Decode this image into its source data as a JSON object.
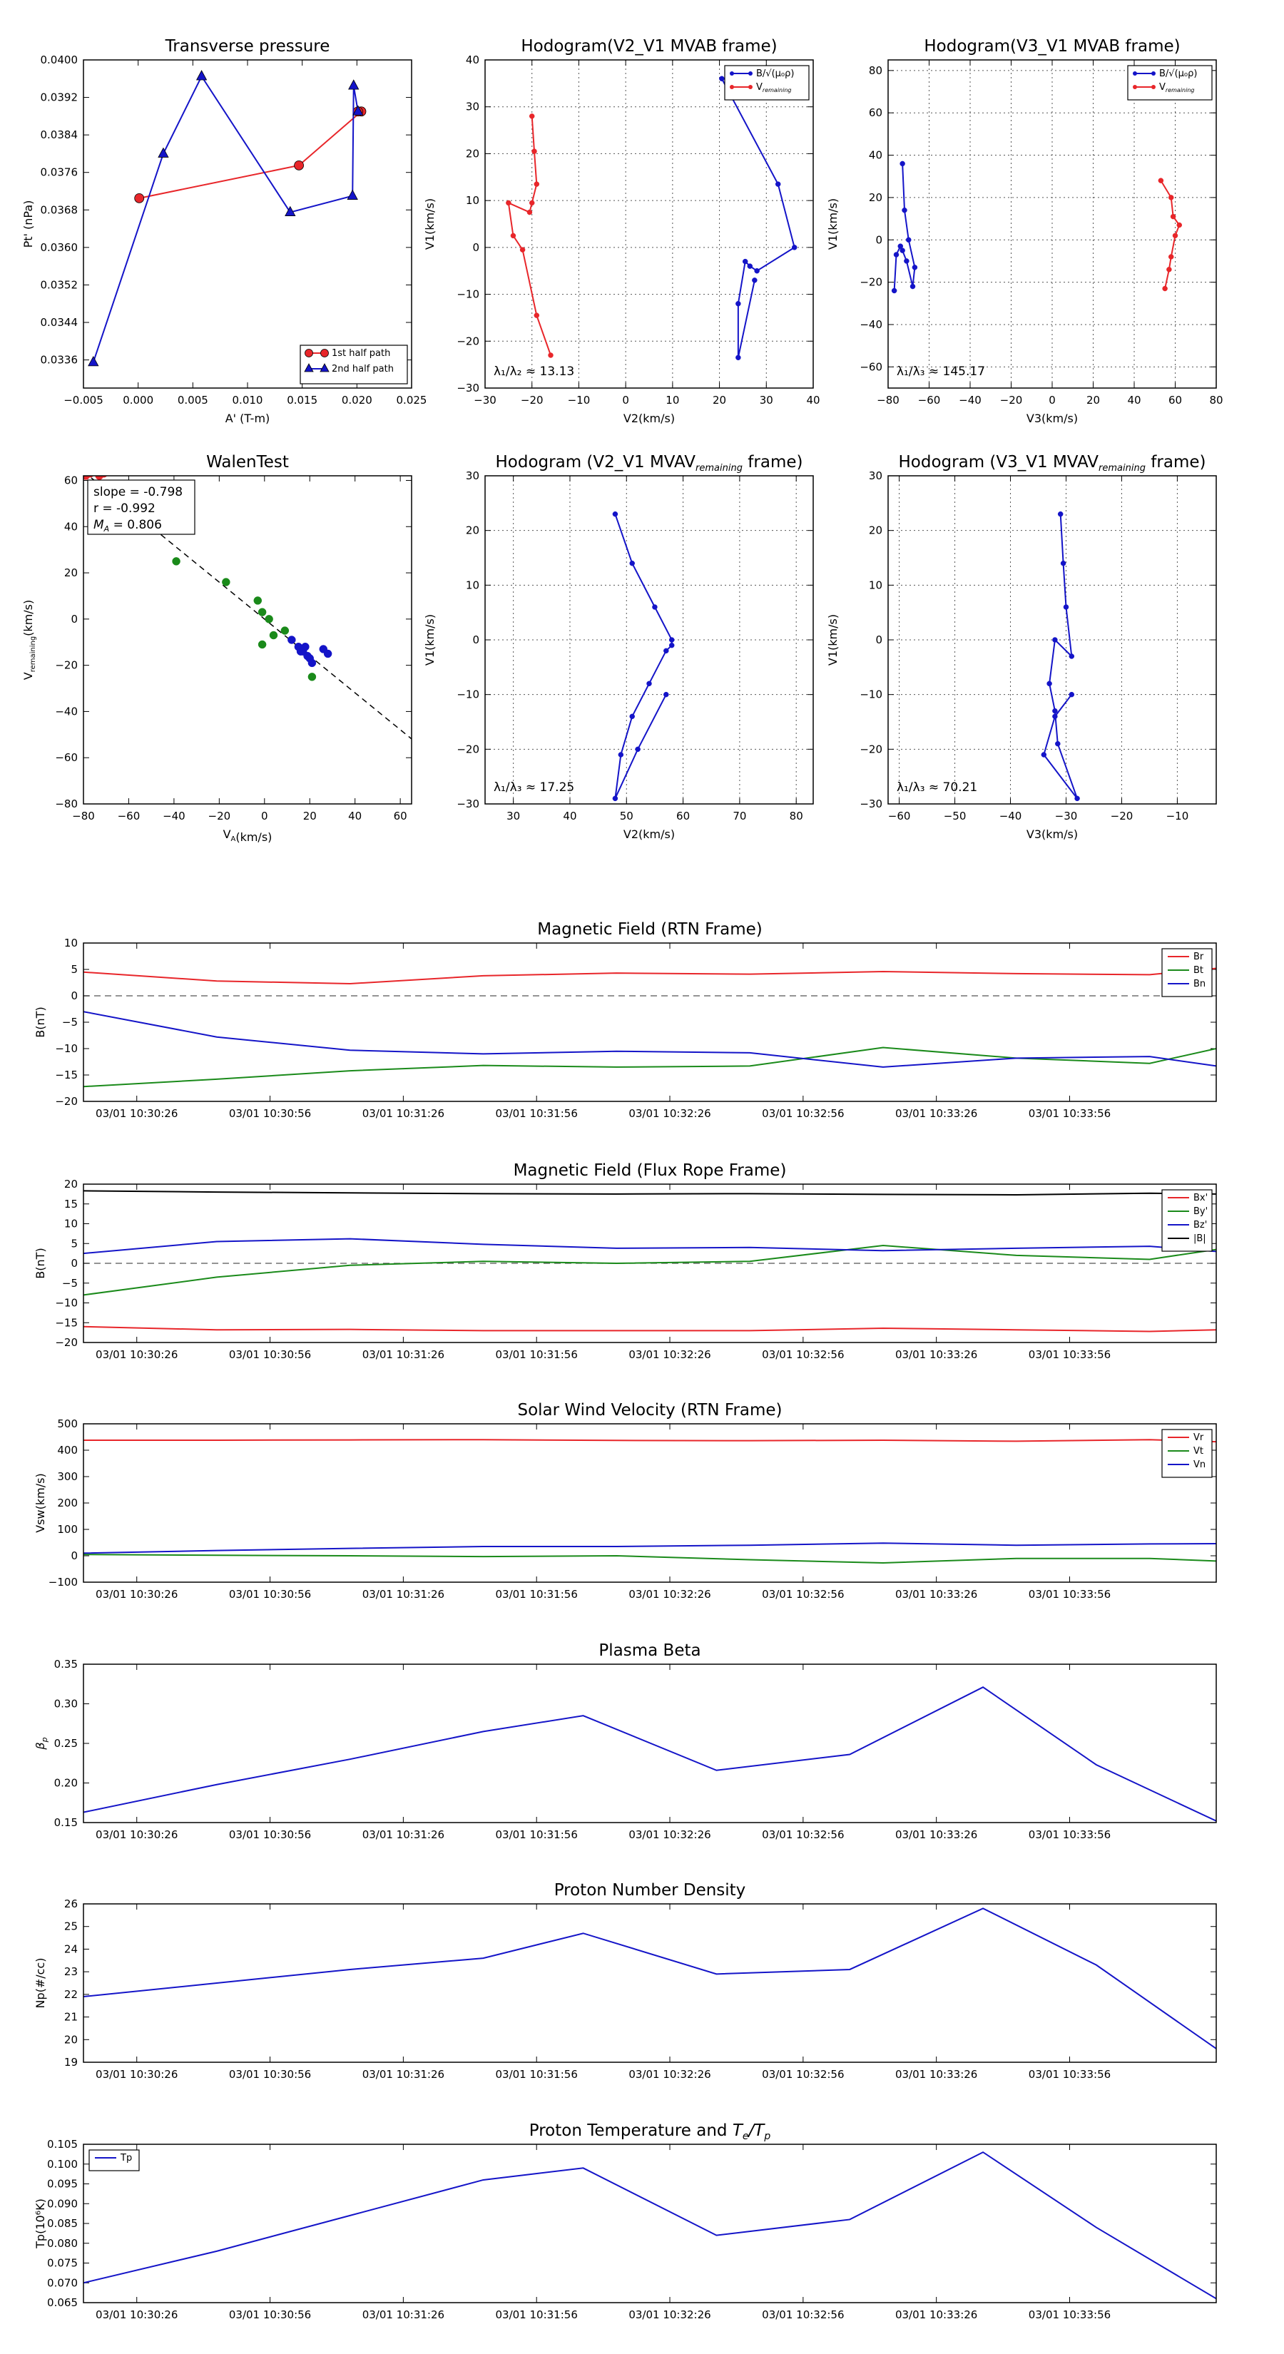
{
  "colors": {
    "red": "#e8262a",
    "green": "#1a8a1a",
    "blue": "#1414c8",
    "black": "#000000",
    "grid": "#555555"
  },
  "chart_data": [
    {
      "type": "scatter",
      "title": "Transverse pressure",
      "xlabel": "A' (T-m)",
      "ylabel": "Pt' (nPa)",
      "xlim": [
        -0.005,
        0.025
      ],
      "ylim": [
        0.033,
        0.04
      ],
      "xticks": [
        -0.005,
        0.0,
        0.005,
        0.01,
        0.015,
        0.02,
        0.025
      ],
      "xticklabels": [
        "−0.005",
        "0.000",
        "0.005",
        "0.010",
        "0.015",
        "0.020",
        "0.025"
      ],
      "yticks": [
        0.0336,
        0.0344,
        0.0352,
        0.036,
        0.0368,
        0.0376,
        0.0384,
        0.0392,
        0.04
      ],
      "yticklabels": [
        "0.0336",
        "0.0344",
        "0.0352",
        "0.0360",
        "0.0368",
        "0.0376",
        "0.0384",
        "0.0392",
        "0.0400"
      ],
      "legend": "lower-right",
      "series": [
        {
          "name": "1st half path",
          "color": "red",
          "marker": "circle",
          "x": [
            0.0001,
            0.0147,
            0.0204,
            0.0201
          ],
          "y": [
            0.03705,
            0.03775,
            0.0389,
            0.0389
          ]
        },
        {
          "name": "2nd half path",
          "color": "blue",
          "marker": "triangle",
          "x": [
            -0.0041,
            0.0023,
            0.0058,
            0.0139,
            0.0196,
            0.0197,
            0.0201
          ],
          "y": [
            0.03355,
            0.038,
            0.03965,
            0.03675,
            0.0371,
            0.03945,
            0.0389
          ]
        }
      ]
    },
    {
      "type": "line",
      "title": "Hodogram(V2_V1 MVAB frame)",
      "xlabel": "V2(km/s)",
      "ylabel": "V1(km/s)",
      "xlim": [
        -30,
        40
      ],
      "ylim": [
        -30,
        40
      ],
      "xticks": [
        -30,
        -20,
        -10,
        0,
        10,
        20,
        30,
        40
      ],
      "xticklabels": [
        "−30",
        "−20",
        "−10",
        "0",
        "10",
        "20",
        "30",
        "40"
      ],
      "yticks": [
        -30,
        -20,
        -10,
        0,
        10,
        20,
        30,
        40
      ],
      "yticklabels": [
        "−30",
        "−20",
        "−10",
        "0",
        "10",
        "20",
        "30",
        "40"
      ],
      "grid": true,
      "legend": "top-right",
      "annotation": "λ₁/λ₂ ≈ 13.13",
      "series": [
        {
          "name": "B/√(μ₀ρ)",
          "color": "blue",
          "x": [
            20.5,
            32.5,
            36,
            28,
            26.5,
            25.5,
            24,
            24,
            27.5
          ],
          "y": [
            36,
            13.5,
            0,
            -5,
            -4,
            -3,
            -12,
            -23.5,
            -7
          ]
        },
        {
          "name": "V_remaining",
          "color": "red",
          "x": [
            -20,
            -19.5,
            -19,
            -20,
            -20.5,
            -25,
            -24,
            -22,
            -19,
            -16
          ],
          "y": [
            28,
            20.5,
            13.5,
            9.5,
            7.5,
            9.5,
            2.5,
            -0.5,
            -14.5,
            -23
          ]
        }
      ]
    },
    {
      "type": "line",
      "title": "Hodogram(V3_V1 MVAB frame)",
      "xlabel": "V3(km/s)",
      "ylabel": "V1(km/s)",
      "xlim": [
        -80,
        80
      ],
      "ylim": [
        -70,
        85
      ],
      "xticks": [
        -80,
        -60,
        -40,
        -20,
        0,
        20,
        40,
        60,
        80
      ],
      "xticklabels": [
        "−80",
        "−60",
        "−40",
        "−20",
        "0",
        "20",
        "40",
        "60",
        "80"
      ],
      "yticks": [
        -60,
        -40,
        -20,
        0,
        20,
        40,
        60,
        80
      ],
      "yticklabels": [
        "−60",
        "−40",
        "−20",
        "0",
        "20",
        "40",
        "60",
        "80"
      ],
      "grid": true,
      "legend": "top-right",
      "annotation": "λ₁/λ₃ ≈ 145.17",
      "series": [
        {
          "name": "B/√(μ₀ρ)",
          "color": "blue",
          "x": [
            -73,
            -72,
            -70,
            -67,
            -68,
            -71,
            -73,
            -74,
            -76,
            -77
          ],
          "y": [
            36,
            14,
            0,
            -13,
            -22,
            -10,
            -5,
            -3,
            -7,
            -24
          ]
        },
        {
          "name": "V_remaining",
          "color": "red",
          "x": [
            53,
            58,
            59,
            62,
            60,
            58,
            57,
            55
          ],
          "y": [
            28,
            20,
            11,
            7,
            2,
            -8,
            -14,
            -23
          ]
        }
      ]
    },
    {
      "type": "scatter",
      "title": "WalenTest",
      "xlabel": "V_A(km/s)",
      "ylabel": "V_remaining(km/s)",
      "xlim": [
        -80,
        65
      ],
      "ylim": [
        -80,
        62
      ],
      "xticks": [
        -80,
        -60,
        -40,
        -20,
        0,
        20,
        40,
        60
      ],
      "xticklabels": [
        "−80",
        "−60",
        "−40",
        "−20",
        "0",
        "20",
        "40",
        "60"
      ],
      "yticks": [
        -80,
        -60,
        -40,
        -20,
        0,
        20,
        40,
        60
      ],
      "yticklabels": [
        "−80",
        "−60",
        "−40",
        "−20",
        "0",
        "20",
        "40",
        "60"
      ],
      "annotation": [
        "slope = -0.798",
        "r = -0.992",
        "M_A = 0.806"
      ],
      "fit": {
        "slope": -0.798,
        "intercept": 0,
        "x": [
          -80,
          65
        ]
      },
      "series": [
        {
          "color": "red",
          "x": [
            -79,
            -77,
            -73,
            -71
          ],
          "y": [
            62,
            63,
            62,
            63
          ]
        },
        {
          "color": "green",
          "x": [
            -39,
            -17,
            -3,
            -1,
            2,
            4,
            9,
            21,
            -1
          ],
          "y": [
            25,
            16,
            8,
            3,
            0,
            -7,
            -5,
            -25,
            -11
          ]
        },
        {
          "color": "blue",
          "x": [
            12,
            15,
            17,
            19,
            20,
            18,
            21,
            26,
            28,
            16
          ],
          "y": [
            -9,
            -12,
            -14,
            -16,
            -17,
            -12,
            -19,
            -13,
            -15,
            -14
          ]
        }
      ]
    },
    {
      "type": "line",
      "title": "Hodogram (V2_V1 MVAV_remaining frame)",
      "xlabel": "V2(km/s)",
      "ylabel": "V1(km/s)",
      "xlim": [
        25,
        83
      ],
      "ylim": [
        -30,
        30
      ],
      "xticks": [
        30,
        40,
        50,
        60,
        70,
        80
      ],
      "xticklabels": [
        "30",
        "40",
        "50",
        "60",
        "70",
        "80"
      ],
      "yticks": [
        -30,
        -20,
        -10,
        0,
        10,
        20,
        30
      ],
      "yticklabels": [
        "−30",
        "−20",
        "−10",
        "0",
        "10",
        "20",
        "30"
      ],
      "grid": true,
      "annotation": "λ₁/λ₃ ≈ 17.25",
      "series": [
        {
          "color": "blue",
          "x": [
            48,
            51,
            55,
            58,
            58,
            57,
            54,
            51,
            49,
            48,
            52,
            57
          ],
          "y": [
            23,
            14,
            6,
            0,
            -1,
            -2,
            -8,
            -14,
            -21,
            -29,
            -20,
            -10
          ]
        }
      ]
    },
    {
      "type": "line",
      "title": "Hodogram (V3_V1 MVAV_remaining frame)",
      "xlabel": "V3(km/s)",
      "ylabel": "V1(km/s)",
      "xlim": [
        -62,
        -3
      ],
      "ylim": [
        -30,
        30
      ],
      "xticks": [
        -60,
        -50,
        -40,
        -30,
        -20,
        -10
      ],
      "xticklabels": [
        "−60",
        "−50",
        "−40",
        "−30",
        "−20",
        "−10"
      ],
      "yticks": [
        -30,
        -20,
        -10,
        0,
        10,
        20,
        30
      ],
      "yticklabels": [
        "−30",
        "−20",
        "−10",
        "0",
        "10",
        "20",
        "30"
      ],
      "grid": true,
      "annotation": "λ₁/λ₃ ≈ 70.21",
      "series": [
        {
          "color": "blue",
          "x": [
            -31,
            -30.5,
            -30,
            -29,
            -32,
            -33,
            -32,
            -31.5,
            -28,
            -34,
            -32,
            -29
          ],
          "y": [
            23,
            14,
            6,
            -3,
            0,
            -8,
            -13,
            -19,
            -29,
            -21,
            -14,
            -10
          ]
        }
      ]
    },
    {
      "type": "line",
      "title": "Magnetic Field (RTN Frame)",
      "ylabel": "B(nT)",
      "xlim": [
        0,
        8.5
      ],
      "ylim": [
        -20,
        10
      ],
      "yticks": [
        -20,
        -15,
        -10,
        -5,
        0,
        5,
        10
      ],
      "yticklabels": [
        "−20",
        "−15",
        "−10",
        "−5",
        "0",
        "5",
        "10"
      ],
      "hline": 0,
      "legend": "top-right",
      "series": [
        {
          "name": "Br",
          "color": "red",
          "x": [
            0,
            1,
            2,
            3,
            4,
            5,
            6,
            7,
            8,
            8.5
          ],
          "y": [
            4.5,
            2.8,
            2.3,
            3.8,
            4.3,
            4.1,
            4.6,
            4.2,
            4.0,
            5.2
          ]
        },
        {
          "name": "Bt",
          "color": "green",
          "x": [
            0,
            1,
            2,
            3,
            4,
            5,
            6,
            7,
            8,
            8.5
          ],
          "y": [
            -17.2,
            -15.8,
            -14.2,
            -13.2,
            -13.5,
            -13.3,
            -9.8,
            -11.8,
            -12.8,
            -10.0
          ]
        },
        {
          "name": "Bn",
          "color": "blue",
          "x": [
            0,
            1,
            2,
            3,
            4,
            5,
            6,
            7,
            8,
            8.5
          ],
          "y": [
            -3.0,
            -7.8,
            -10.3,
            -11.0,
            -10.5,
            -10.8,
            -13.5,
            -11.8,
            -11.5,
            -13.3
          ]
        }
      ]
    },
    {
      "type": "line",
      "title": "Magnetic Field (Flux Rope Frame)",
      "ylabel": "B(nT)",
      "xlim": [
        0,
        8.5
      ],
      "ylim": [
        -20,
        20
      ],
      "yticks": [
        -20,
        -15,
        -10,
        -5,
        0,
        5,
        10,
        15,
        20
      ],
      "yticklabels": [
        "−20",
        "−15",
        "−10",
        "−5",
        "0",
        "5",
        "10",
        "15",
        "20"
      ],
      "hline": 0,
      "legend": "top-right",
      "series": [
        {
          "name": "Bx'",
          "color": "red",
          "x": [
            0,
            1,
            2,
            3,
            4,
            5,
            6,
            7,
            8,
            8.5
          ],
          "y": [
            -16.0,
            -16.8,
            -16.7,
            -17.0,
            -17.0,
            -17.0,
            -16.4,
            -16.8,
            -17.2,
            -16.8
          ]
        },
        {
          "name": "By'",
          "color": "green",
          "x": [
            0,
            1,
            2,
            3,
            4,
            5,
            6,
            7,
            8,
            8.5
          ],
          "y": [
            -8.0,
            -3.5,
            -0.5,
            0.5,
            0.0,
            0.5,
            4.5,
            2.0,
            1.0,
            3.5
          ]
        },
        {
          "name": "Bz'",
          "color": "blue",
          "x": [
            0,
            1,
            2,
            3,
            4,
            5,
            6,
            7,
            8,
            8.5
          ],
          "y": [
            2.5,
            5.5,
            6.2,
            4.8,
            3.8,
            4.0,
            3.2,
            3.8,
            4.3,
            3.0
          ]
        },
        {
          "name": "|B|",
          "color": "black",
          "x": [
            0,
            1,
            2,
            3,
            4,
            5,
            6,
            7,
            8,
            8.5
          ],
          "y": [
            18.3,
            18.0,
            17.8,
            17.6,
            17.5,
            17.6,
            17.4,
            17.3,
            17.7,
            17.5
          ]
        }
      ]
    },
    {
      "type": "line",
      "title": "Solar Wind Velocity (RTN Frame)",
      "ylabel": "Vsw(km/s)",
      "xlim": [
        0,
        8.5
      ],
      "ylim": [
        -100,
        500
      ],
      "yticks": [
        -100,
        0,
        100,
        200,
        300,
        400,
        500
      ],
      "yticklabels": [
        "−100",
        "0",
        "100",
        "200",
        "300",
        "400",
        "500"
      ],
      "legend": "top-right",
      "series": [
        {
          "name": "Vr",
          "color": "red",
          "x": [
            0,
            1,
            2,
            3,
            4,
            5,
            6,
            7,
            8,
            8.5
          ],
          "y": [
            438,
            438,
            439,
            440,
            437,
            436,
            438,
            434,
            440,
            432
          ]
        },
        {
          "name": "Vt",
          "color": "green",
          "x": [
            0,
            1,
            2,
            3,
            4,
            5,
            6,
            7,
            8,
            8.5
          ],
          "y": [
            5,
            2,
            0,
            -3,
            0,
            -15,
            -27,
            -10,
            -10,
            -20
          ]
        },
        {
          "name": "Vn",
          "color": "blue",
          "x": [
            0,
            1,
            2,
            3,
            4,
            5,
            6,
            7,
            8,
            8.5
          ],
          "y": [
            10,
            20,
            28,
            35,
            35,
            40,
            48,
            40,
            45,
            46
          ]
        }
      ]
    },
    {
      "type": "line",
      "title": "Plasma Beta",
      "ylabel": "β_p",
      "xlim": [
        0,
        8.5
      ],
      "ylim": [
        0.15,
        0.35
      ],
      "yticks": [
        0.15,
        0.2,
        0.25,
        0.3,
        0.35
      ],
      "yticklabels": [
        "0.15",
        "0.20",
        "0.25",
        "0.30",
        "0.35"
      ],
      "series": [
        {
          "color": "blue",
          "x": [
            0,
            1,
            2,
            3,
            3.75,
            4.75,
            5.75,
            6.75,
            7.6,
            8.5
          ],
          "y": [
            0.163,
            0.198,
            0.23,
            0.265,
            0.285,
            0.216,
            0.236,
            0.321,
            0.223,
            0.152
          ]
        }
      ]
    },
    {
      "type": "line",
      "title": "Proton Number Density",
      "ylabel": "Np(#/cc)",
      "xlim": [
        0,
        8.5
      ],
      "ylim": [
        19,
        26
      ],
      "yticks": [
        19,
        20,
        21,
        22,
        23,
        24,
        25,
        26
      ],
      "yticklabels": [
        "19",
        "20",
        "21",
        "22",
        "23",
        "24",
        "25",
        "26"
      ],
      "series": [
        {
          "color": "blue",
          "x": [
            0,
            1,
            2,
            3,
            3.75,
            4.75,
            5.75,
            6.75,
            7.6,
            8.5
          ],
          "y": [
            21.9,
            22.5,
            23.1,
            23.6,
            24.7,
            22.9,
            23.1,
            25.8,
            23.3,
            19.6
          ]
        }
      ]
    },
    {
      "type": "line",
      "title": "Proton Temperature and T_e/T_p",
      "ylabel": "Tp(10⁶K)",
      "xlim": [
        0,
        8.5
      ],
      "ylim": [
        0.065,
        0.105
      ],
      "yticks": [
        0.065,
        0.07,
        0.075,
        0.08,
        0.085,
        0.09,
        0.095,
        0.1,
        0.105
      ],
      "yticklabels": [
        "0.065",
        "0.070",
        "0.075",
        "0.080",
        "0.085",
        "0.090",
        "0.095",
        "0.100",
        "0.105"
      ],
      "legend": "top-left",
      "series": [
        {
          "name": "Tp",
          "color": "blue",
          "x": [
            0,
            1,
            2,
            3,
            3.75,
            4.75,
            5.75,
            6.75,
            7.6,
            8.5
          ],
          "y": [
            0.07,
            0.078,
            0.087,
            0.096,
            0.099,
            0.082,
            0.086,
            0.103,
            0.084,
            0.066
          ]
        }
      ]
    }
  ],
  "time_axis": {
    "ticks": [
      0.4,
      1.4,
      2.4,
      3.4,
      4.4,
      5.4,
      6.4,
      7.4
    ],
    "labels": [
      "03/01 10:30:26",
      "03/01 10:30:56",
      "03/01 10:31:26",
      "03/01 10:31:56",
      "03/01 10:32:26",
      "03/01 10:32:56",
      "03/01 10:33:26",
      "03/01 10:33:56"
    ]
  }
}
